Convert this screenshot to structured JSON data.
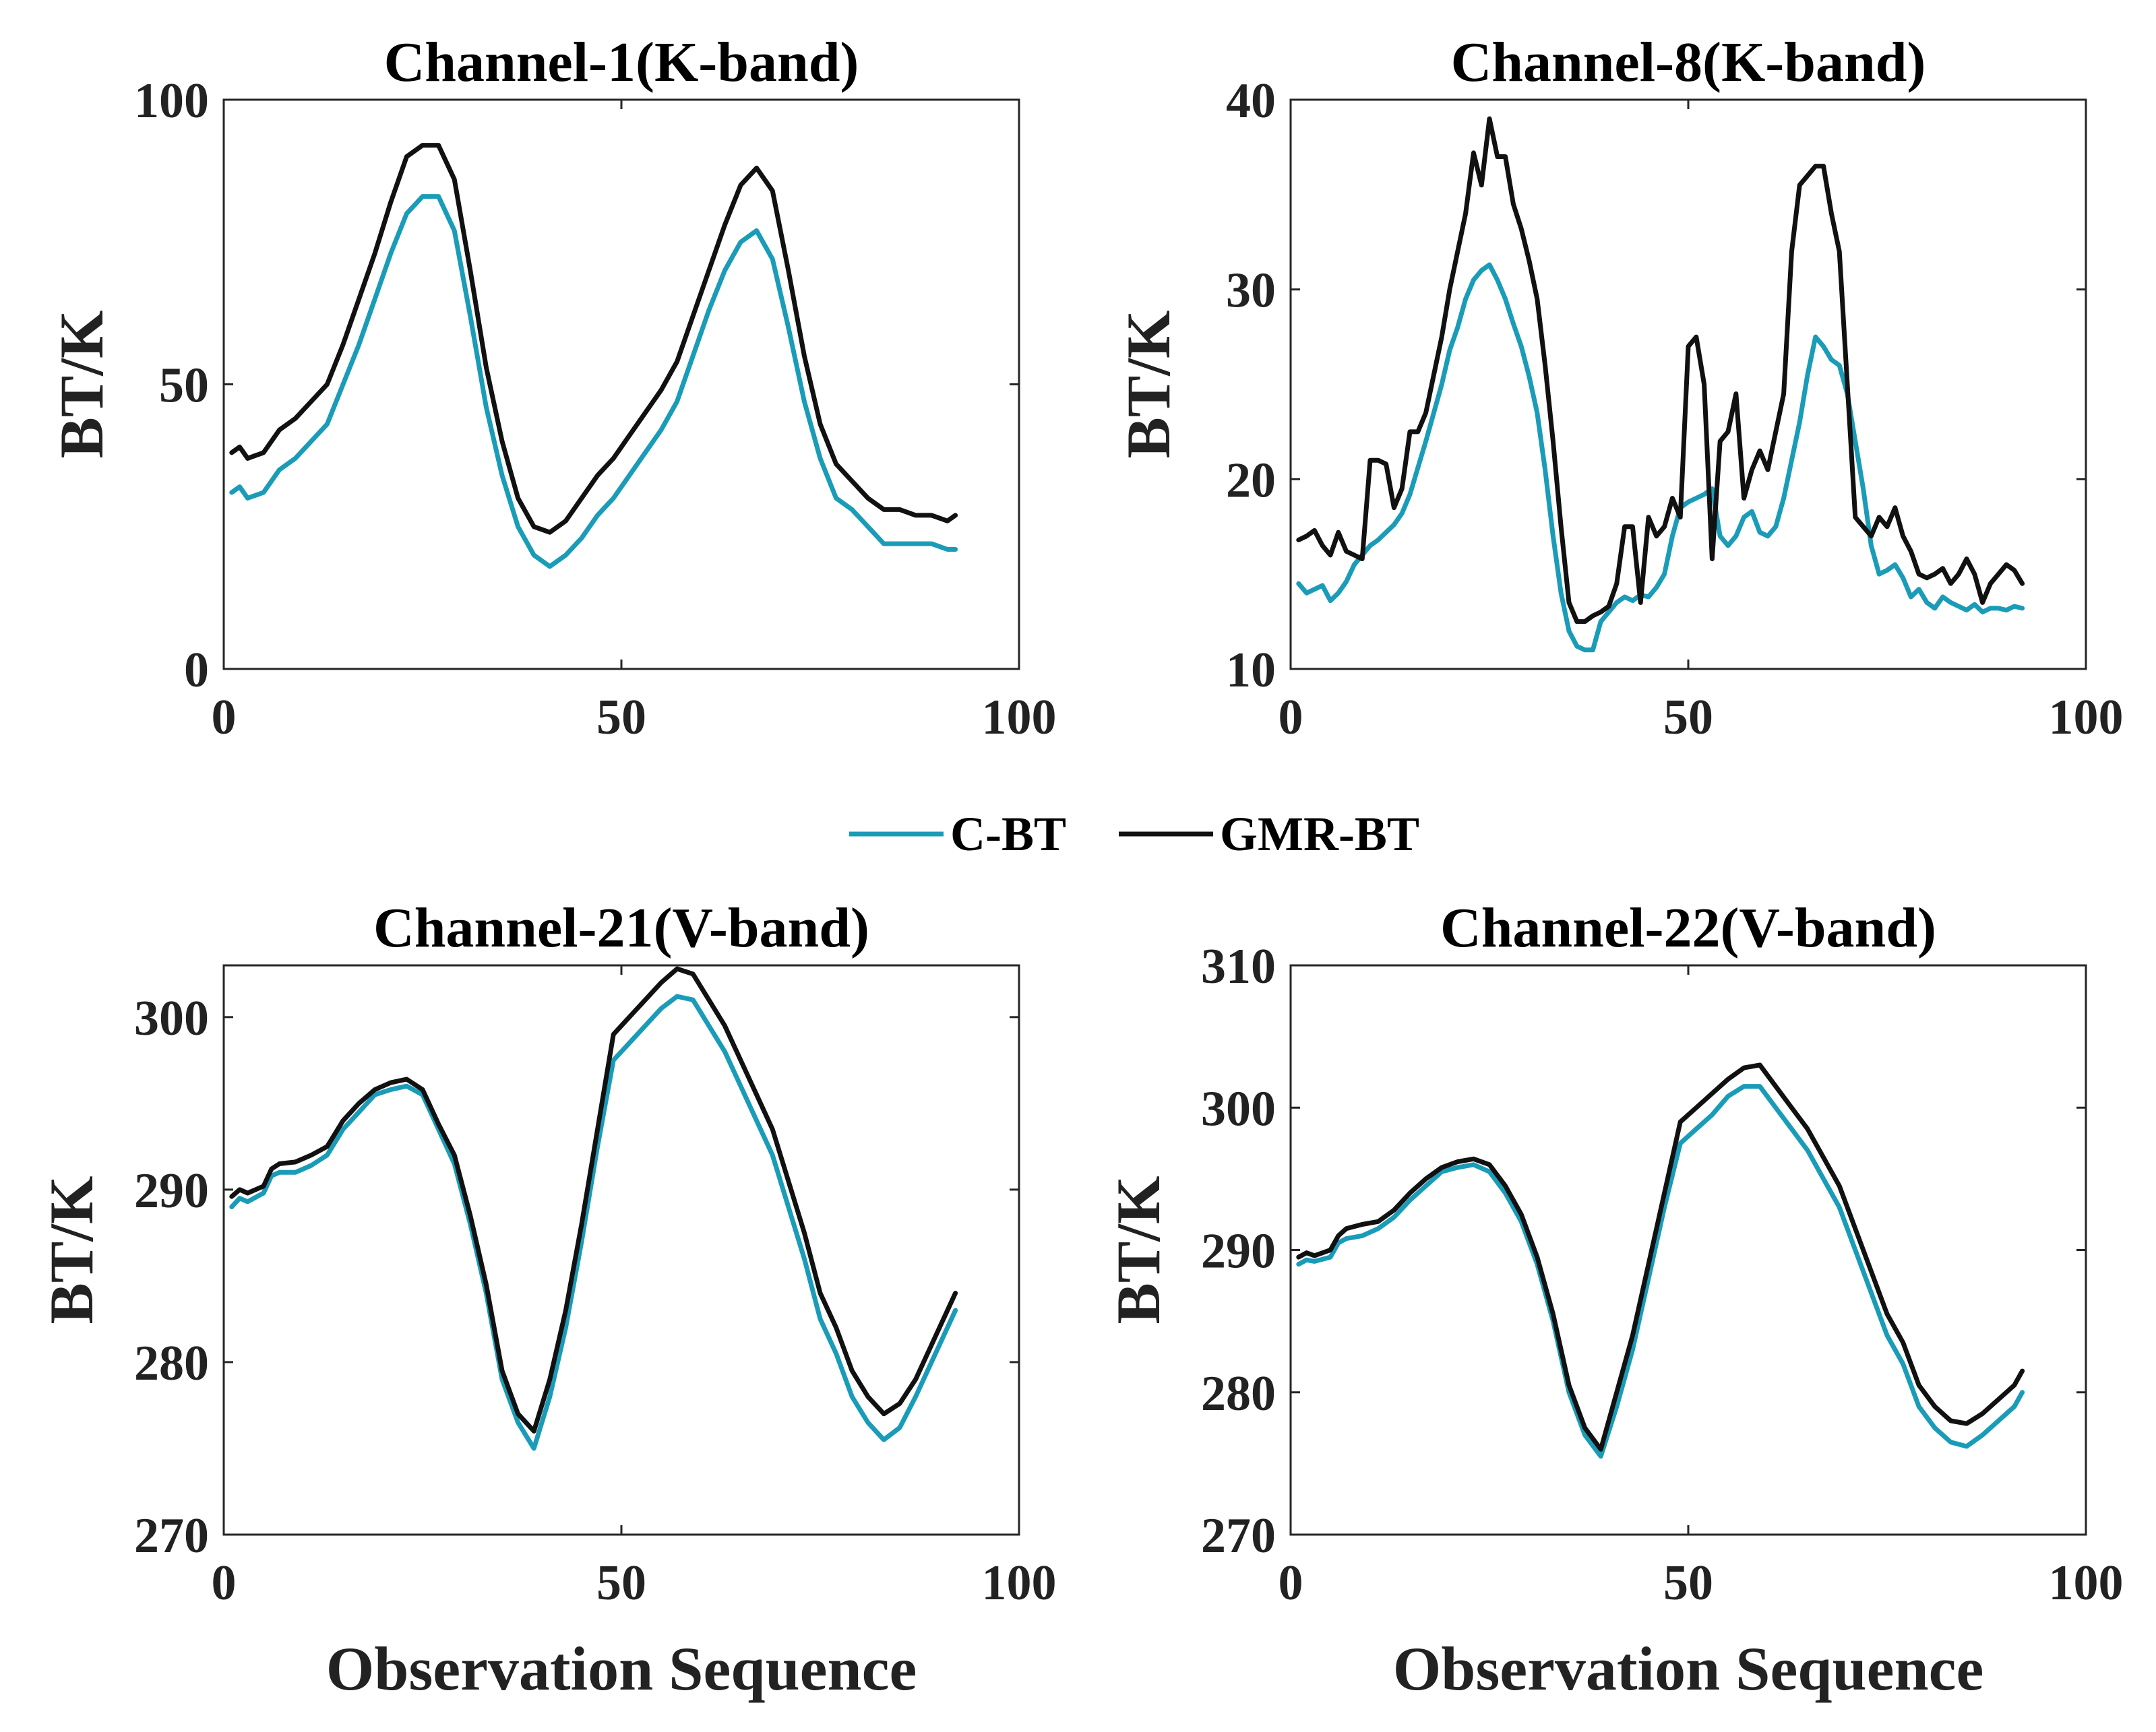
{
  "legend": {
    "entries": [
      {
        "label": "C-BT",
        "color": "#1a9cb8"
      },
      {
        "label": "GMR-BT",
        "color": "#111111"
      }
    ]
  },
  "chart_data": [
    {
      "type": "line",
      "title": "Channel-1(K-band)",
      "xlabel": "",
      "ylabel": "BT/K",
      "xlim": [
        0,
        100
      ],
      "ylim": [
        0,
        100
      ],
      "xticks": [
        "0",
        "50",
        "100"
      ],
      "yticks": [
        "0",
        "50",
        "100"
      ],
      "series": [
        {
          "name": "C-BT",
          "color": "#1a9cb8",
          "x": [
            1,
            2,
            3,
            5,
            7,
            9,
            11,
            13,
            15,
            17,
            19,
            21,
            23,
            25,
            27,
            29,
            31,
            33,
            35,
            37,
            39,
            41,
            43,
            45,
            47,
            49,
            51,
            53,
            55,
            57,
            59,
            61,
            63,
            65,
            67,
            69,
            71,
            73,
            75,
            77,
            79,
            81,
            83,
            85,
            87,
            89,
            91,
            92
          ],
          "y": [
            31,
            32,
            30,
            31,
            35,
            37,
            40,
            43,
            50,
            57,
            65,
            73,
            80,
            83,
            83,
            77,
            62,
            46,
            34,
            25,
            20,
            18,
            20,
            23,
            27,
            30,
            34,
            38,
            42,
            47,
            55,
            63,
            70,
            75,
            77,
            72,
            60,
            47,
            37,
            30,
            28,
            25,
            22,
            22,
            22,
            22,
            21,
            21
          ]
        },
        {
          "name": "GMR-BT",
          "color": "#111111",
          "x": [
            1,
            2,
            3,
            5,
            7,
            9,
            11,
            13,
            15,
            17,
            19,
            21,
            23,
            25,
            27,
            29,
            31,
            33,
            35,
            37,
            39,
            41,
            43,
            45,
            47,
            49,
            51,
            53,
            55,
            57,
            59,
            61,
            63,
            65,
            67,
            69,
            71,
            73,
            75,
            77,
            79,
            81,
            83,
            85,
            87,
            89,
            91,
            92
          ],
          "y": [
            38,
            39,
            37,
            38,
            42,
            44,
            47,
            50,
            57,
            65,
            73,
            82,
            90,
            92,
            92,
            86,
            70,
            53,
            40,
            30,
            25,
            24,
            26,
            30,
            34,
            37,
            41,
            45,
            49,
            54,
            62,
            70,
            78,
            85,
            88,
            84,
            70,
            55,
            43,
            36,
            33,
            30,
            28,
            28,
            27,
            27,
            26,
            27
          ]
        }
      ]
    },
    {
      "type": "line",
      "title": "Channel-8(K-band)",
      "xlabel": "",
      "ylabel": "BT/K",
      "xlim": [
        0,
        100
      ],
      "ylim": [
        10,
        40
      ],
      "xticks": [
        "0",
        "50",
        "100"
      ],
      "yticks": [
        "10",
        "20",
        "30",
        "40"
      ],
      "series": [
        {
          "name": "C-BT",
          "color": "#1a9cb8",
          "x": [
            1,
            2,
            3,
            4,
            5,
            6,
            7,
            8,
            9,
            10,
            11,
            12,
            13,
            14,
            15,
            16,
            17,
            18,
            19,
            20,
            21,
            22,
            23,
            24,
            25,
            26,
            27,
            28,
            29,
            30,
            31,
            32,
            33,
            34,
            35,
            36,
            37,
            38,
            39,
            40,
            41,
            42,
            43,
            44,
            45,
            46,
            47,
            48,
            49,
            50,
            51,
            52,
            53,
            54,
            55,
            56,
            57,
            58,
            59,
            60,
            61,
            62,
            63,
            64,
            65,
            66,
            67,
            68,
            69,
            70,
            71,
            72,
            73,
            74,
            75,
            76,
            77,
            78,
            79,
            80,
            81,
            82,
            83,
            84,
            85,
            86,
            87,
            88,
            89,
            90,
            91,
            92
          ],
          "y": [
            14.5,
            14.0,
            14.2,
            14.4,
            13.6,
            14.0,
            14.6,
            15.5,
            16.0,
            16.5,
            16.8,
            17.2,
            17.6,
            18.2,
            19.2,
            20.6,
            22.0,
            23.5,
            25.0,
            26.8,
            28.0,
            29.5,
            30.5,
            31.0,
            31.3,
            30.5,
            29.5,
            28.2,
            27.0,
            25.4,
            23.5,
            20.5,
            17.0,
            14.0,
            12.0,
            11.2,
            11.0,
            11.0,
            12.5,
            13.0,
            13.5,
            13.8,
            13.6,
            13.9,
            13.8,
            14.3,
            15.0,
            17.0,
            18.5,
            18.8,
            19.0,
            19.2,
            19.5,
            17.0,
            16.5,
            17.0,
            18.0,
            18.3,
            17.2,
            17.0,
            17.5,
            19.0,
            21.0,
            23.0,
            25.5,
            27.5,
            27.0,
            26.3,
            26.0,
            24.5,
            22.0,
            19.5,
            16.5,
            15.0,
            15.2,
            15.5,
            14.8,
            13.8,
            14.2,
            13.5,
            13.2,
            13.8,
            13.5,
            13.3,
            13.1,
            13.4,
            13.0,
            13.2,
            13.2,
            13.1,
            13.3,
            13.2
          ]
        },
        {
          "name": "GMR-BT",
          "color": "#111111",
          "x": [
            1,
            2,
            3,
            4,
            5,
            6,
            7,
            8,
            9,
            10,
            11,
            12,
            13,
            14,
            15,
            16,
            17,
            18,
            19,
            20,
            21,
            22,
            23,
            24,
            25,
            26,
            27,
            28,
            29,
            30,
            31,
            32,
            33,
            34,
            35,
            36,
            37,
            38,
            39,
            40,
            41,
            42,
            43,
            44,
            45,
            46,
            47,
            48,
            49,
            50,
            51,
            52,
            53,
            54,
            55,
            56,
            57,
            58,
            59,
            60,
            61,
            62,
            63,
            64,
            65,
            66,
            67,
            68,
            69,
            70,
            71,
            72,
            73,
            74,
            75,
            76,
            77,
            78,
            79,
            80,
            81,
            82,
            83,
            84,
            85,
            86,
            87,
            88,
            89,
            90,
            91,
            92
          ],
          "y": [
            16.8,
            17.0,
            17.3,
            16.5,
            16.0,
            17.2,
            16.2,
            16.0,
            15.8,
            21.0,
            21.0,
            20.8,
            18.5,
            19.5,
            22.5,
            22.5,
            23.5,
            25.5,
            27.5,
            30.0,
            32.0,
            34.0,
            37.2,
            35.5,
            39.0,
            37.0,
            37.0,
            34.5,
            33.2,
            31.5,
            29.5,
            26.0,
            22.0,
            17.5,
            13.5,
            12.5,
            12.5,
            12.8,
            13.0,
            13.3,
            14.5,
            17.5,
            17.5,
            13.5,
            18.0,
            17.0,
            17.5,
            19.0,
            18.0,
            27.0,
            27.5,
            25.0,
            15.8,
            22.0,
            22.5,
            24.5,
            19.0,
            20.5,
            21.5,
            20.5,
            22.5,
            24.5,
            32.0,
            35.5,
            36.0,
            36.5,
            36.5,
            34.0,
            32.0,
            25.0,
            18.0,
            17.5,
            17.0,
            18.0,
            17.5,
            18.5,
            17.0,
            16.2,
            15.0,
            14.8,
            15.0,
            15.3,
            14.5,
            15.0,
            15.8,
            15.0,
            13.5,
            14.5,
            15.0,
            15.5,
            15.2,
            14.5
          ]
        }
      ]
    },
    {
      "type": "line",
      "title": "Channel-21(V-band)",
      "xlabel": "Observation Sequence",
      "ylabel": "BT/K",
      "xlim": [
        0,
        100
      ],
      "ylim": [
        270,
        303
      ],
      "xticks": [
        "0",
        "50",
        "100"
      ],
      "yticks": [
        "270",
        "280",
        "290",
        "300"
      ],
      "series": [
        {
          "name": "C-BT",
          "color": "#1a9cb8",
          "x": [
            1,
            2,
            3,
            5,
            6,
            7,
            9,
            11,
            13,
            15,
            17,
            19,
            21,
            23,
            25,
            27,
            29,
            31,
            33,
            35,
            37,
            39,
            41,
            43,
            45,
            47,
            49,
            51,
            53,
            55,
            57,
            59,
            61,
            63,
            65,
            67,
            69,
            71,
            73,
            75,
            77,
            79,
            81,
            83,
            85,
            87,
            89,
            91,
            92
          ],
          "y": [
            289,
            289.5,
            289.3,
            289.8,
            290.8,
            291,
            291,
            291.4,
            292,
            293.5,
            294.5,
            295.5,
            295.8,
            296,
            295.5,
            293.5,
            291.5,
            288,
            284,
            279,
            276.5,
            275,
            278,
            282,
            287,
            292.5,
            297.5,
            298.5,
            299.5,
            300.5,
            301.2,
            301,
            299.5,
            298,
            296,
            294,
            292,
            289,
            286,
            282.5,
            280.5,
            278,
            276.5,
            275.5,
            276.2,
            278,
            280,
            282,
            283
          ]
        },
        {
          "name": "GMR-BT",
          "color": "#111111",
          "x": [
            1,
            2,
            3,
            5,
            6,
            7,
            9,
            11,
            13,
            15,
            17,
            19,
            21,
            23,
            25,
            27,
            29,
            31,
            33,
            35,
            37,
            39,
            41,
            43,
            45,
            47,
            49,
            51,
            53,
            55,
            57,
            59,
            61,
            63,
            65,
            67,
            69,
            71,
            73,
            75,
            77,
            79,
            81,
            83,
            85,
            87,
            89,
            91,
            92
          ],
          "y": [
            289.6,
            290,
            289.8,
            290.2,
            291.2,
            291.5,
            291.6,
            292,
            292.5,
            294,
            295,
            295.8,
            296.2,
            296.4,
            295.8,
            293.8,
            292,
            288.5,
            284.5,
            279.5,
            277,
            276,
            279,
            283,
            288,
            293.5,
            299,
            300,
            301,
            302,
            302.8,
            302.5,
            301,
            299.5,
            297.5,
            295.5,
            293.5,
            290.5,
            287.5,
            284,
            282,
            279.5,
            278,
            277,
            277.6,
            279,
            281,
            283,
            284
          ]
        }
      ]
    },
    {
      "type": "line",
      "title": "Channel-22(V-band)",
      "xlabel": "Observation Sequence",
      "ylabel": "BT/K",
      "xlim": [
        0,
        100
      ],
      "ylim": [
        270,
        310
      ],
      "xticks": [
        "0",
        "50",
        "100"
      ],
      "yticks": [
        "270",
        "280",
        "290",
        "300",
        "310"
      ],
      "series": [
        {
          "name": "C-BT",
          "color": "#1a9cb8",
          "x": [
            1,
            2,
            3,
            5,
            6,
            7,
            9,
            11,
            13,
            15,
            17,
            19,
            21,
            23,
            25,
            27,
            29,
            31,
            33,
            35,
            37,
            39,
            41,
            43,
            45,
            47,
            49,
            51,
            53,
            55,
            57,
            59,
            61,
            63,
            65,
            67,
            69,
            71,
            73,
            75,
            77,
            79,
            81,
            83,
            85,
            87,
            89,
            91,
            92
          ],
          "y": [
            289,
            289.3,
            289.2,
            289.5,
            290.5,
            290.8,
            291,
            291.5,
            292.3,
            293.5,
            294.5,
            295.5,
            295.8,
            296,
            295.5,
            294,
            292,
            289,
            285,
            280,
            277,
            275.5,
            279,
            283,
            288,
            293,
            297.5,
            298.5,
            299.5,
            300.8,
            301.5,
            301.5,
            300,
            298.5,
            297,
            295,
            293,
            290,
            287,
            284,
            282,
            279,
            277.5,
            276.5,
            276.2,
            277,
            278,
            279,
            280
          ]
        },
        {
          "name": "GMR-BT",
          "color": "#111111",
          "x": [
            1,
            2,
            3,
            5,
            6,
            7,
            9,
            11,
            13,
            15,
            17,
            19,
            21,
            23,
            25,
            27,
            29,
            31,
            33,
            35,
            37,
            39,
            41,
            43,
            45,
            47,
            49,
            51,
            53,
            55,
            57,
            59,
            61,
            63,
            65,
            67,
            69,
            71,
            73,
            75,
            77,
            79,
            81,
            83,
            85,
            87,
            89,
            91,
            92
          ],
          "y": [
            289.5,
            289.8,
            289.6,
            290,
            291,
            291.5,
            291.8,
            292,
            292.8,
            294,
            295,
            295.8,
            296.2,
            296.4,
            296,
            294.5,
            292.5,
            289.5,
            285.5,
            280.5,
            277.5,
            276,
            280,
            284,
            289,
            294,
            299,
            300,
            301,
            302,
            302.8,
            303,
            301.5,
            300,
            298.5,
            296.5,
            294.5,
            291.5,
            288.5,
            285.5,
            283.5,
            280.5,
            279,
            278,
            277.8,
            278.5,
            279.5,
            280.5,
            281.5
          ]
        }
      ]
    }
  ]
}
